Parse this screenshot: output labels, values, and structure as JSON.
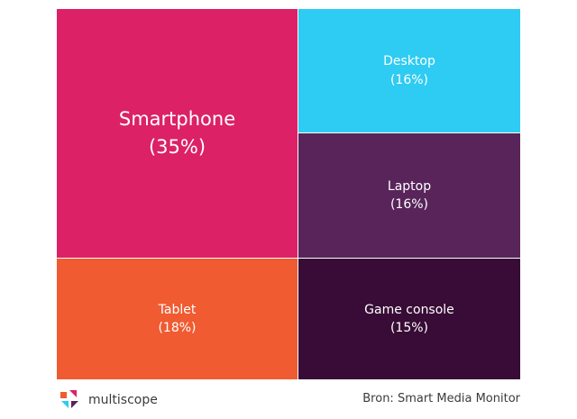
{
  "chart_data": {
    "type": "treemap",
    "unit": "%",
    "items": [
      {
        "label": "Smartphone",
        "value_label": "(35%)",
        "value": 35,
        "color": "#dc2166"
      },
      {
        "label": "Desktop",
        "value_label": "(16%)",
        "value": 16,
        "color": "#2ecbf2"
      },
      {
        "label": "Laptop",
        "value_label": "(16%)",
        "value": 16,
        "color": "#58245a"
      },
      {
        "label": "Tablet",
        "value_label": "(18%)",
        "value": 18,
        "color": "#f05b32"
      },
      {
        "label": "Game console",
        "value_label": "(15%)",
        "value": 15,
        "color": "#380c36"
      }
    ]
  },
  "footer": {
    "brand": "multiscope",
    "source": "Bron: Smart Media Monitor"
  },
  "logo_colors": [
    "#f05b32",
    "#dc2166",
    "#2ecbf2",
    "#58245a"
  ]
}
